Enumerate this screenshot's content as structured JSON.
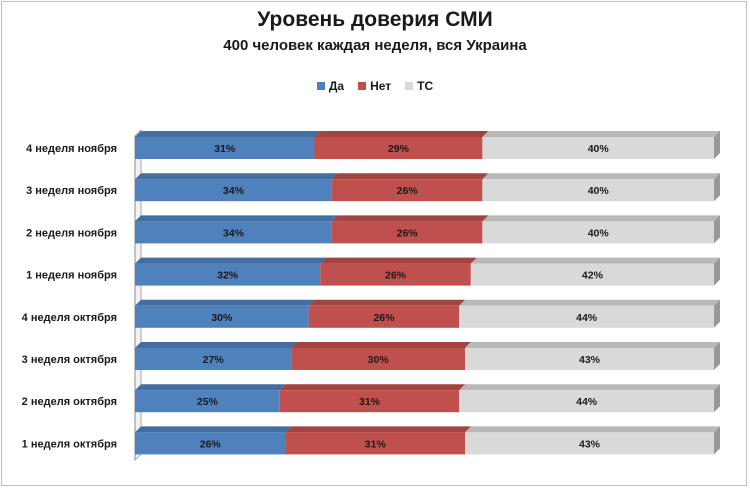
{
  "chart_data": {
    "type": "bar",
    "orientation": "horizontal",
    "stacked": "100%",
    "title": "Уровень доверия СМИ",
    "subtitle": "400 человек каждая неделя, вся Украина",
    "legend_position": "top",
    "categories": [
      "4 неделя ноября",
      "3 неделя ноября",
      "2 неделя ноября",
      "1 неделя ноября",
      "4 неделя октября",
      "3 неделя октября",
      "2 неделя октября",
      "1 неделя октября"
    ],
    "series": [
      {
        "name": "Да",
        "color": "#4f81bd",
        "values": [
          31,
          34,
          34,
          32,
          30,
          27,
          25,
          26
        ]
      },
      {
        "name": "Нет",
        "color": "#c0504d",
        "values": [
          29,
          26,
          26,
          26,
          26,
          30,
          31,
          31
        ]
      },
      {
        "name": "ТС",
        "color": "#d9d9d9",
        "values": [
          40,
          40,
          40,
          42,
          44,
          43,
          44,
          43
        ]
      }
    ],
    "value_format": "{v}%",
    "xlim": [
      0,
      100
    ]
  }
}
